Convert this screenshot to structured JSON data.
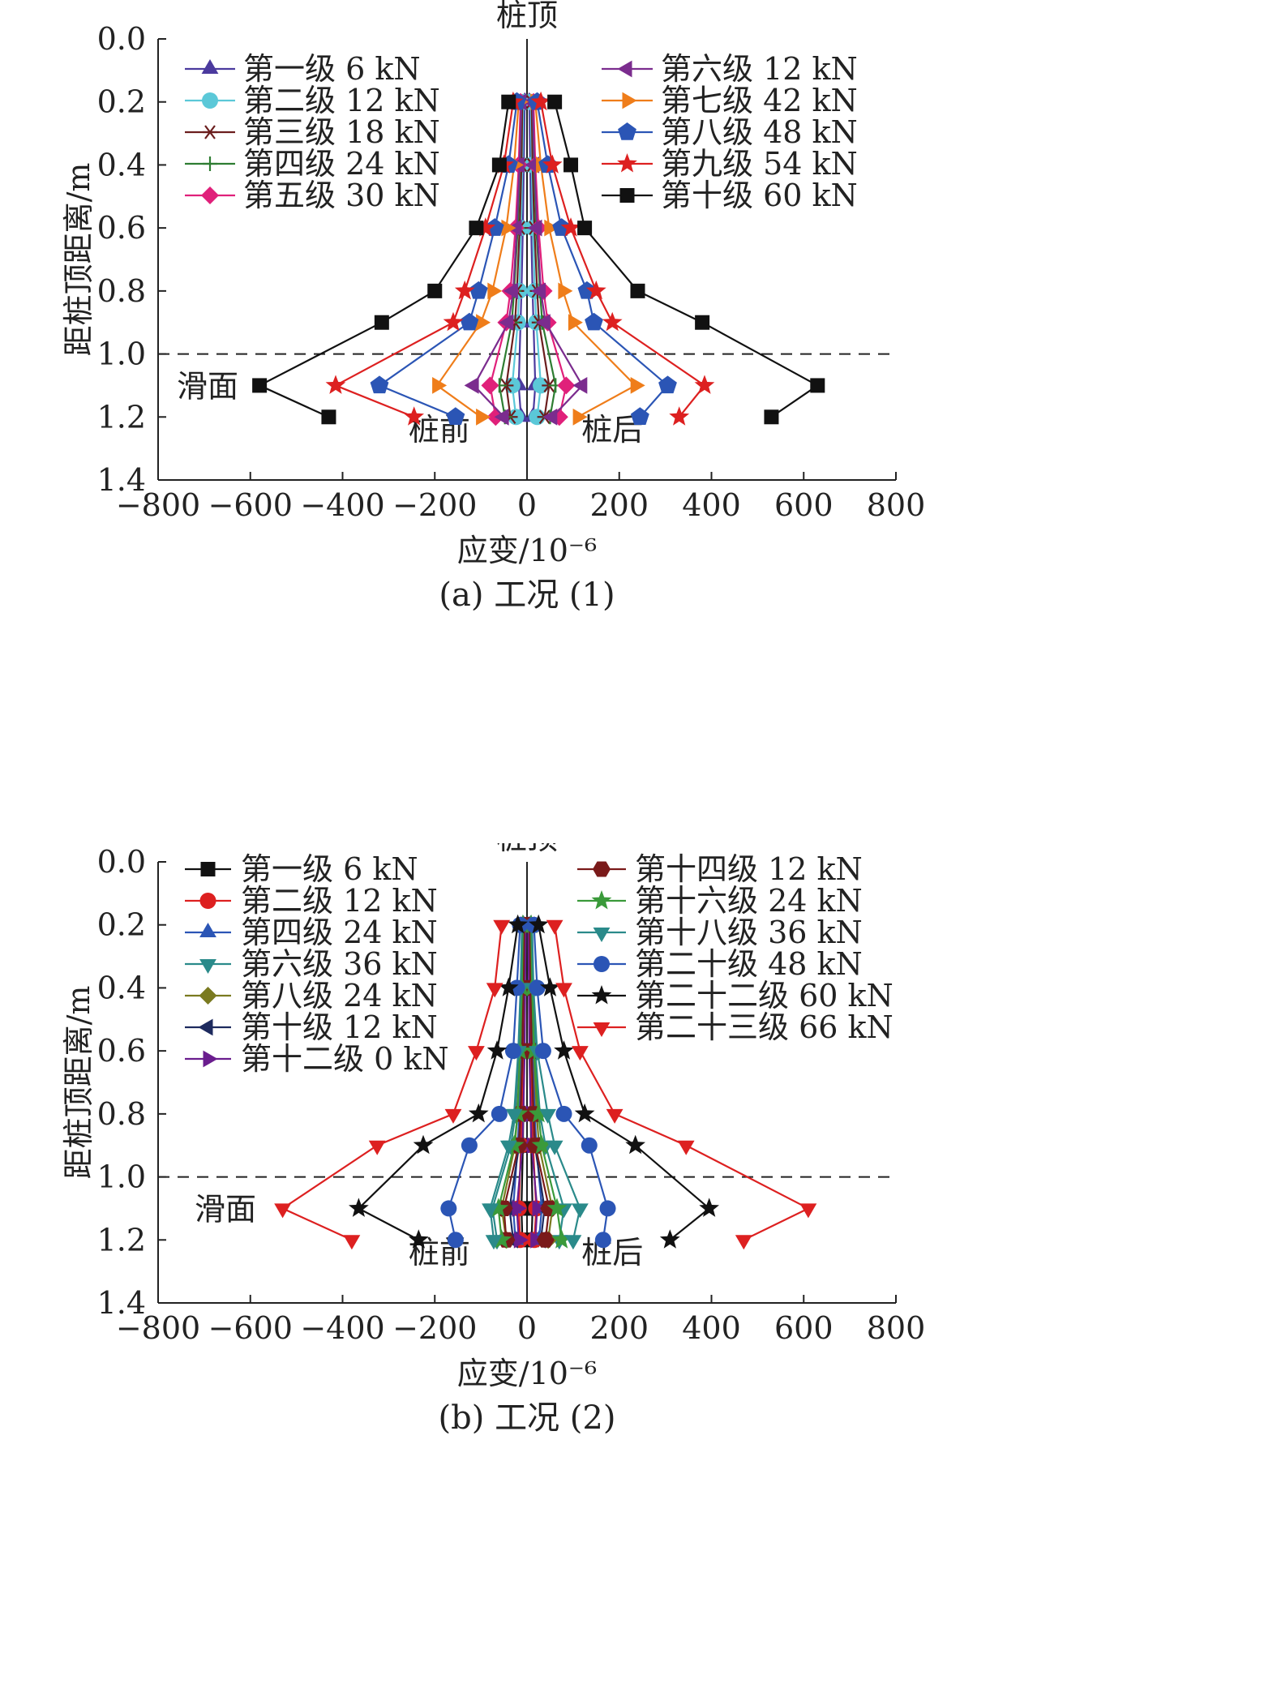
{
  "chart_data": [
    {
      "type": "line",
      "caption": "(a) 工况 (1)",
      "xlabel": "应变/10⁻⁶",
      "ylabel": "距桩顶距离/m",
      "xlim": [
        -800,
        800
      ],
      "ylim": [
        0.0,
        1.4
      ],
      "y_inverted": true,
      "xticks": [
        "−800",
        "−600",
        "−400",
        "−200",
        "0",
        "200",
        "400",
        "600",
        "800"
      ],
      "yticks": [
        "0.0",
        "0.2",
        "0.4",
        "0.6",
        "0.8",
        "1.0",
        "1.2",
        "1.4"
      ],
      "annotations": {
        "top": "桩顶",
        "slip": "滑面",
        "front": "桩前",
        "back": "桩后"
      },
      "slip_surface_depth": 1.0,
      "depths": [
        0.2,
        0.4,
        0.6,
        0.8,
        0.9,
        1.1,
        1.2
      ],
      "legend_left": [
        "第一级 6 kN",
        "第二级 12 kN",
        "第三级 18 kN",
        "第四级 24 kN",
        "第五级 30 kN"
      ],
      "legend_right": [
        "第六级 12 kN",
        "第七级 42 kN",
        "第八级 48 kN",
        "第九级 54 kN",
        "第十级 60 kN"
      ],
      "series": [
        {
          "name": "第一级 6 kN",
          "color": "#4b3a9e",
          "marker": "triangle-up",
          "front": [
            -5,
            -7,
            -9,
            -12,
            -14,
            -18,
            -13
          ],
          "back": [
            5,
            7,
            9,
            12,
            14,
            18,
            13
          ]
        },
        {
          "name": "第二级 12 kN",
          "color": "#5bc8d8",
          "marker": "circle",
          "front": [
            -8,
            -10,
            -13,
            -17,
            -20,
            -32,
            -24
          ],
          "back": [
            8,
            10,
            13,
            17,
            20,
            30,
            22
          ]
        },
        {
          "name": "第三级 18 kN",
          "color": "#6b1e1e",
          "marker": "asterisk",
          "front": [
            -10,
            -12,
            -16,
            -22,
            -26,
            -45,
            -36
          ],
          "back": [
            10,
            12,
            16,
            22,
            26,
            48,
            38
          ]
        },
        {
          "name": "第四级 24 kN",
          "color": "#2e7d32",
          "marker": "plus",
          "front": [
            -12,
            -15,
            -20,
            -28,
            -33,
            -60,
            -48
          ],
          "back": [
            12,
            15,
            20,
            28,
            33,
            62,
            50
          ]
        },
        {
          "name": "第五级 30 kN",
          "color": "#e0207a",
          "marker": "diamond",
          "front": [
            -14,
            -18,
            -25,
            -36,
            -45,
            -80,
            -68
          ],
          "back": [
            14,
            18,
            25,
            36,
            45,
            85,
            70
          ]
        },
        {
          "name": "第六级 12 kN",
          "color": "#7b2c8e",
          "marker": "triangle-left",
          "front": [
            -12,
            -16,
            -22,
            -30,
            -40,
            -115,
            -50
          ],
          "back": [
            12,
            16,
            22,
            30,
            40,
            120,
            55
          ]
        },
        {
          "name": "第七级 42 kN",
          "color": "#ef7d1a",
          "marker": "triangle-right",
          "front": [
            -18,
            -28,
            -45,
            -75,
            -100,
            -195,
            -100
          ],
          "back": [
            18,
            30,
            48,
            78,
            100,
            235,
            110
          ]
        },
        {
          "name": "第八级 48 kN",
          "color": "#2b55b5",
          "marker": "pentagon",
          "front": [
            -22,
            -40,
            -70,
            -105,
            -125,
            -320,
            -155
          ],
          "back": [
            22,
            45,
            75,
            130,
            145,
            305,
            245
          ]
        },
        {
          "name": "第九级 54 kN",
          "color": "#dd2020",
          "marker": "star",
          "front": [
            -30,
            -50,
            -90,
            -135,
            -160,
            -415,
            -245
          ],
          "back": [
            30,
            55,
            95,
            150,
            185,
            385,
            330
          ]
        },
        {
          "name": "第十级 60 kN",
          "color": "#111111",
          "marker": "square",
          "front": [
            -40,
            -60,
            -110,
            -200,
            -315,
            -580,
            -430
          ],
          "back": [
            60,
            95,
            125,
            240,
            380,
            630,
            530
          ]
        }
      ]
    },
    {
      "type": "line",
      "caption": "(b) 工况 (2)",
      "xlabel": "应变/10⁻⁶",
      "ylabel": "距桩顶距离/m",
      "xlim": [
        -800,
        800
      ],
      "ylim": [
        0.0,
        1.4
      ],
      "y_inverted": true,
      "xticks": [
        "−800",
        "−600",
        "−400",
        "−200",
        "0",
        "200",
        "400",
        "600",
        "800"
      ],
      "yticks": [
        "0.0",
        "0.2",
        "0.4",
        "0.6",
        "0.8",
        "1.0",
        "1.2",
        "1.4"
      ],
      "annotations": {
        "top": "桩顶",
        "slip": "滑面",
        "front": "桩前",
        "back": "桩后"
      },
      "slip_surface_depth": 1.0,
      "depths": [
        0.2,
        0.4,
        0.6,
        0.8,
        0.9,
        1.1,
        1.2
      ],
      "legend_left": [
        "第一级 6 kN",
        "第二级 12 kN",
        "第四级 24 kN",
        "第六级 36 kN",
        "第八级 24 kN",
        "第十级 12 kN",
        "第十二级 0 kN"
      ],
      "legend_right": [
        "第十四级 12 kN",
        "第十六级 24 kN",
        "第十八级 36 kN",
        "第二十级 48 kN",
        "第二十二级 60 kN",
        "第二十三级 66 kN"
      ],
      "series": [
        {
          "name": "第一级 6 kN",
          "color": "#111111",
          "marker": "square",
          "front": [
            -4,
            -5,
            -6,
            -8,
            -9,
            -12,
            -10
          ],
          "back": [
            4,
            5,
            6,
            8,
            9,
            12,
            10
          ]
        },
        {
          "name": "第二级 12 kN",
          "color": "#dd2020",
          "marker": "circle",
          "front": [
            -6,
            -7,
            -9,
            -11,
            -13,
            -18,
            -15
          ],
          "back": [
            6,
            7,
            9,
            11,
            13,
            20,
            16
          ]
        },
        {
          "name": "第四级 24 kN",
          "color": "#2b55b5",
          "marker": "triangle-up",
          "front": [
            -8,
            -10,
            -13,
            -17,
            -20,
            -30,
            -25
          ],
          "back": [
            8,
            10,
            13,
            17,
            20,
            32,
            26
          ]
        },
        {
          "name": "第六级 36 kN",
          "color": "#2a8a8a",
          "marker": "triangle-down",
          "front": [
            -10,
            -13,
            -18,
            -25,
            -35,
            -75,
            -65
          ],
          "back": [
            10,
            13,
            18,
            28,
            40,
            80,
            70
          ]
        },
        {
          "name": "第八级 24 kN",
          "color": "#7a7a20",
          "marker": "diamond",
          "front": [
            -9,
            -11,
            -15,
            -21,
            -26,
            -55,
            -45
          ],
          "back": [
            9,
            11,
            15,
            21,
            26,
            55,
            46
          ]
        },
        {
          "name": "第十级 12 kN",
          "color": "#1d2a5e",
          "marker": "triangle-left",
          "front": [
            -6,
            -8,
            -10,
            -14,
            -17,
            -38,
            -30
          ],
          "back": [
            6,
            8,
            10,
            14,
            17,
            38,
            30
          ]
        },
        {
          "name": "第十二级 0 kN",
          "color": "#6a1d8e",
          "marker": "triangle-right",
          "front": [
            -3,
            -4,
            -5,
            -8,
            -10,
            -22,
            -18
          ],
          "back": [
            3,
            4,
            5,
            8,
            10,
            22,
            18
          ]
        },
        {
          "name": "第十四级 12 kN",
          "color": "#7a1a1a",
          "marker": "hexagon",
          "front": [
            -6,
            -8,
            -10,
            -14,
            -18,
            -50,
            -45
          ],
          "back": [
            6,
            8,
            10,
            14,
            18,
            48,
            40
          ]
        },
        {
          "name": "第十六级 24 kN",
          "color": "#3a9a3a",
          "marker": "star",
          "front": [
            -9,
            -11,
            -15,
            -20,
            -28,
            -62,
            -55
          ],
          "back": [
            9,
            11,
            15,
            25,
            32,
            65,
            75
          ]
        },
        {
          "name": "第十八级 36 kN",
          "color": "#2a8a8a",
          "marker": "triangle-down",
          "front": [
            -11,
            -14,
            -19,
            -28,
            -40,
            -80,
            -72
          ],
          "back": [
            11,
            14,
            22,
            45,
            60,
            115,
            100
          ]
        },
        {
          "name": "第二十级 48 kN",
          "color": "#2b55b5",
          "marker": "circle",
          "front": [
            -15,
            -22,
            -30,
            -60,
            -125,
            -170,
            -155
          ],
          "back": [
            15,
            22,
            35,
            80,
            135,
            175,
            165
          ]
        },
        {
          "name": "第二十二级 60 kN",
          "color": "#111111",
          "marker": "star",
          "front": [
            -20,
            -40,
            -65,
            -105,
            -225,
            -365,
            -235
          ],
          "back": [
            25,
            50,
            80,
            125,
            235,
            395,
            310
          ]
        },
        {
          "name": "第二十三级 66 kN",
          "color": "#dd2020",
          "marker": "triangle-down",
          "front": [
            -55,
            -70,
            -110,
            -160,
            -325,
            -530,
            -380
          ],
          "back": [
            60,
            80,
            115,
            190,
            345,
            610,
            470
          ]
        }
      ]
    }
  ]
}
